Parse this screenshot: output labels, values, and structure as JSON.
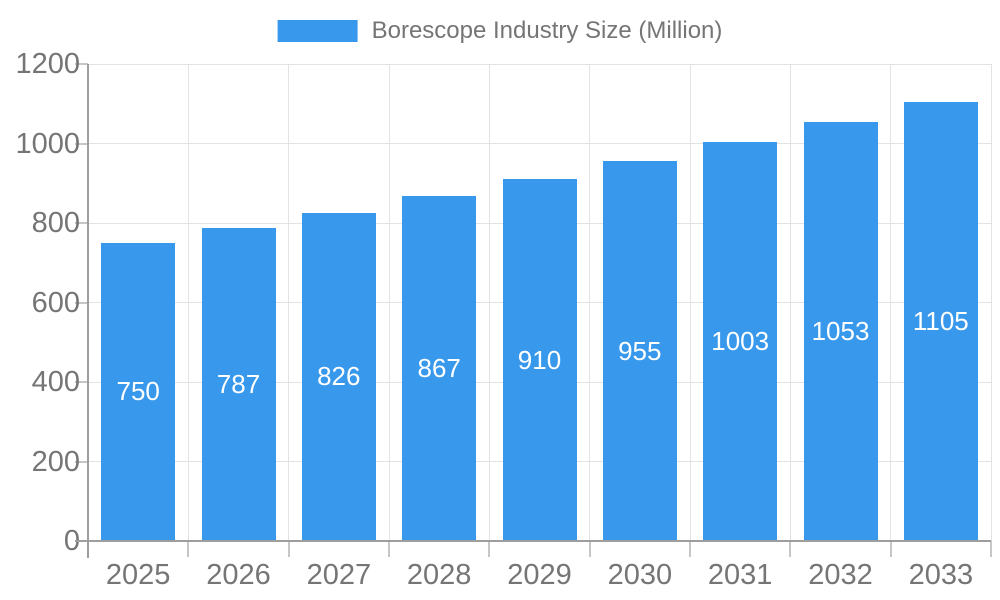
{
  "colors": {
    "bar": "#3898EC",
    "axis_label": "#757575",
    "value_label": "#FFFFFF",
    "grid": "#E3E3E3",
    "tick": "#C6C6C6",
    "axis": "#9E9E9E",
    "background": "#FFFFFF"
  },
  "legend": {
    "label": "Borescope Industry Size (Million)",
    "swatch_color": "#3898EC",
    "position": "top-center"
  },
  "chart_data": {
    "type": "bar",
    "title": "Borescope Industry Size (Million)",
    "categories": [
      "2025",
      "2026",
      "2027",
      "2028",
      "2029",
      "2030",
      "2031",
      "2032",
      "2033"
    ],
    "values": [
      750,
      787,
      826,
      867,
      910,
      955,
      1003,
      1053,
      1105
    ],
    "xlabel": "",
    "ylabel": "",
    "ylim": [
      0,
      1200
    ],
    "yticks": [
      0,
      200,
      400,
      600,
      800,
      1000,
      1200
    ],
    "grid": true,
    "legend_position": "top",
    "value_labels": "inside-center-white"
  }
}
